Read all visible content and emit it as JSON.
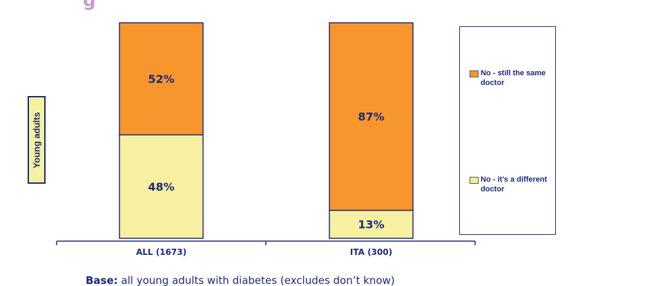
{
  "title_fragment": "g",
  "y_axis_label": "Young adults",
  "base_note": {
    "label": "Base:",
    "text": " all young adults with diabetes (excludes don’t know)"
  },
  "colors": {
    "same_doctor": "#f7962d",
    "different_doctor": "#f6f0a0",
    "border": "#1d2a7a",
    "text": "#1d2a7a"
  },
  "chart_data": {
    "type": "bar",
    "stacked": true,
    "percent_stacked": true,
    "categories": [
      "ALL (1673)",
      "ITA (300)"
    ],
    "series": [
      {
        "name": "No - it’s a different doctor",
        "values": [
          48,
          13
        ],
        "labels": [
          "48%",
          "13%"
        ],
        "color": "#f6f0a0"
      },
      {
        "name": "No - still the same doctor",
        "values": [
          52,
          87
        ],
        "labels": [
          "52%",
          "87%"
        ],
        "color": "#f7962d"
      }
    ],
    "ylim": [
      0,
      100
    ],
    "legend": {
      "position": "right",
      "entries": [
        "No - still the same doctor",
        "No - it’s a different doctor"
      ]
    },
    "grid": false
  }
}
